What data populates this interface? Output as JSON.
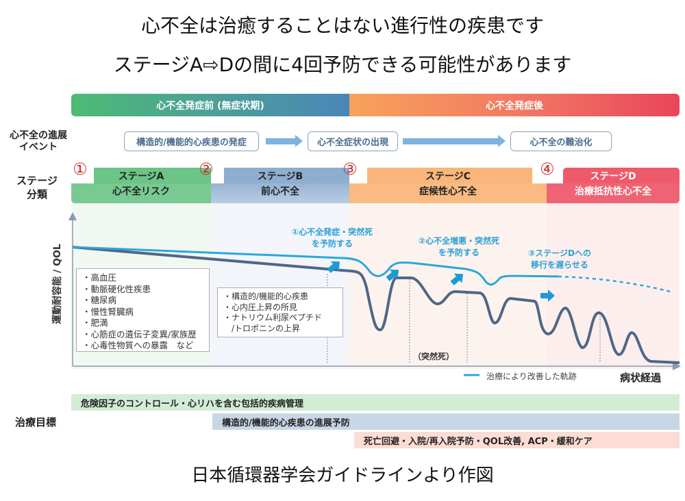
{
  "title": {
    "line1": "心不全は治癒することはない進行性の疾患です",
    "line2": "ステージA⇨Dの間に4回予防できる可能性があります"
  },
  "phases": {
    "before": "心不全発症前 (無症状期)",
    "after": "心不全発症後"
  },
  "events": {
    "label_line1": "心不全の進展",
    "label_line2": "イベント",
    "items": [
      "構造的/機能的心疾患の発症",
      "心不全症状の出現",
      "心不全の難治化"
    ]
  },
  "stages": {
    "label_line1": "ステージ",
    "label_line2": "分類",
    "markers": [
      "①",
      "②",
      "③",
      "④"
    ],
    "items": [
      {
        "name": "ステージA",
        "desc": "心不全リスク"
      },
      {
        "name": "ステージB",
        "desc": "前心不全"
      },
      {
        "name": "ステージC",
        "desc": "症候性心不全"
      },
      {
        "name": "ステージD",
        "desc": "治療抵抗性心不全"
      }
    ]
  },
  "chart": {
    "ylabel": "運動耐容能 / QOL",
    "xlabel": "病状経過",
    "legend": "治療により改善した軌跡",
    "sudden_death": "（突然死）",
    "stage_a_factors": [
      "・高血圧",
      "・動脈硬化性疾患",
      "・糖尿病",
      "・慢性腎臓病",
      "・肥満",
      "・心筋症の遺伝子変異/家族歴",
      "・心毒性物質への暴露　など"
    ],
    "stage_b_factors": [
      "・構造的/機能的心疾患",
      "・心内圧上昇の所見",
      "・ナトリウム利尿ペプチド",
      "　/トロポニンの上昇"
    ],
    "annotations": [
      {
        "l1": "①心不全発症・突然死",
        "l2": "を予防する"
      },
      {
        "l1": "②心不全増悪・突然死",
        "l2": "を予防する"
      },
      {
        "l1": "③ステージDへの",
        "l2": "移行を遅らせる"
      }
    ]
  },
  "treatment": {
    "label": "治療目標",
    "items": [
      "危険因子のコントロール・心リハを含む包括的疾病管理",
      "構造的/機能的心疾患の進展予防",
      "死亡回避・入院/再入院予防・QOL改善, ACP・緩和ケア"
    ]
  },
  "footer": "日本循環器学会ガイドラインより作図",
  "colors": {
    "curve_light": "#2aa6dc",
    "curve_dark": "#4f6787",
    "marker": "#d0312d"
  }
}
